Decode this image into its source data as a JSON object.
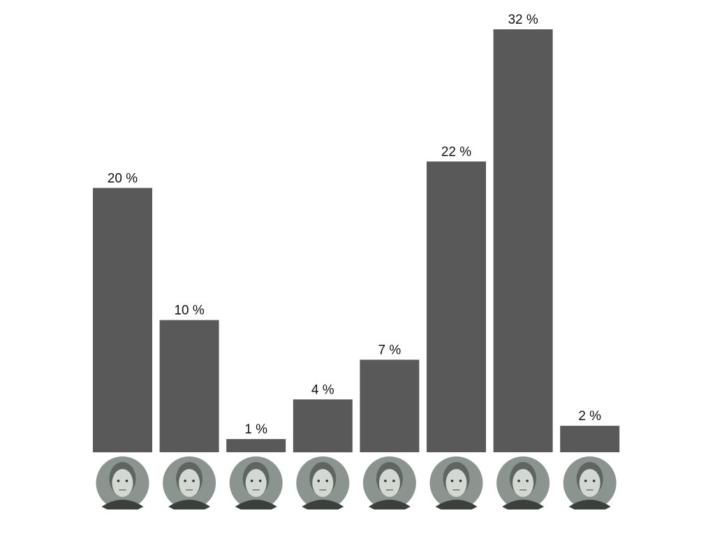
{
  "chart_data": {
    "type": "bar",
    "title": "",
    "xlabel": "",
    "ylabel": "",
    "ylim": [
      0,
      32
    ],
    "grid": false,
    "legend": "none",
    "categories": [
      {
        "icon": "portrait-man-short-dark-hair-icon"
      },
      {
        "icon": "portrait-man-bald-icon"
      },
      {
        "icon": "portrait-woman-blonde-bob-icon"
      },
      {
        "icon": "portrait-woman-shoulder-hair-icon"
      },
      {
        "icon": "portrait-man-light-hair-icon"
      },
      {
        "icon": "portrait-woman-short-blonde-icon"
      },
      {
        "icon": "portrait-man-shaved-head-icon"
      },
      {
        "icon": "portrait-man-glasses-icon"
      }
    ],
    "values": [
      20,
      10,
      1,
      4,
      7,
      22,
      32,
      2
    ],
    "value_labels": [
      "20 %",
      "10 %",
      "1 %",
      "4 %",
      "7 %",
      "22 %",
      "32 %",
      "2 %"
    ],
    "bar_color": "#595959",
    "portrait_bg_color": "#8c948f",
    "portrait_face_color": "#d3d8d3"
  }
}
